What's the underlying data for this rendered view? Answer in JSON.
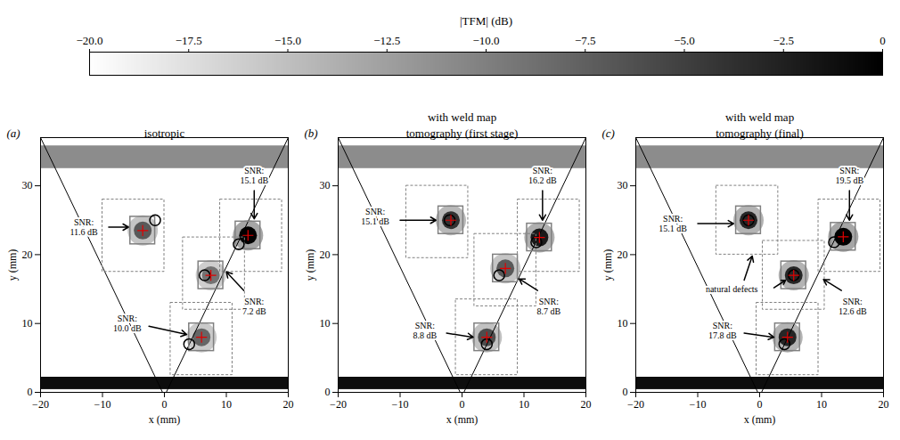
{
  "chart_data": [
    {
      "type": "colorbar",
      "title": "|TFM| (dB)",
      "xlim": [
        -20,
        0
      ],
      "xticks": [
        {
          "value": -20,
          "label": "−20.0"
        },
        {
          "value": -17.5,
          "label": "−17.5"
        },
        {
          "value": -15,
          "label": "−15.0"
        },
        {
          "value": -12.5,
          "label": "−12.5"
        },
        {
          "value": -10,
          "label": "−10.0"
        },
        {
          "value": -7.5,
          "label": "−7.5"
        },
        {
          "value": -5,
          "label": "−5.0"
        },
        {
          "value": -2.5,
          "label": "−2.5"
        },
        0
      ]
    },
    {
      "type": "heatmap",
      "label": "(a)",
      "title": "isotropic",
      "xlabel": "x (mm)",
      "ylabel": "y (mm)",
      "xlim": [
        -20,
        20
      ],
      "xticks": [
        -20,
        -10,
        0,
        10,
        20
      ],
      "ylim": [
        0,
        37
      ],
      "yticks": [
        0,
        10,
        20,
        30
      ],
      "bands": [
        {
          "y1": 0.4,
          "y2": 2.2,
          "db": -1
        },
        {
          "y1": 32.5,
          "y2": 35.8,
          "db": -11
        }
      ],
      "reflectors": [
        {
          "x": -3.5,
          "y": 23.5,
          "db": -7
        },
        {
          "x": 13.5,
          "y": 22.8,
          "db": 0
        },
        {
          "x": 7.5,
          "y": 17,
          "db": -9
        },
        {
          "x": 6,
          "y": 8,
          "db": -8
        }
      ],
      "weld_lines": [
        [
          [
            -20,
            37
          ],
          [
            -0.3,
            0
          ]
        ],
        [
          [
            0.3,
            0
          ],
          [
            20,
            37
          ]
        ]
      ],
      "true_positions": [
        [
          -1.5,
          25
        ],
        [
          12,
          21.5
        ],
        [
          6.5,
          17
        ],
        [
          4,
          7
        ]
      ],
      "peaks": [
        [
          -3.5,
          23.5
        ],
        [
          13.5,
          22.8
        ],
        [
          7.5,
          17
        ],
        [
          6,
          8
        ]
      ],
      "boxes": [
        [
          -5.5,
          -1.5,
          21.5,
          25.5
        ],
        [
          11.5,
          15.5,
          20.8,
          24.8
        ],
        [
          5.5,
          9.5,
          15,
          19
        ],
        [
          4,
          8,
          6,
          10
        ]
      ],
      "regions": [
        [
          -10,
          0,
          17.5,
          28
        ],
        [
          9,
          19,
          17.5,
          28
        ],
        [
          3,
          13,
          12,
          22.5
        ],
        [
          1,
          11,
          2.5,
          13
        ]
      ],
      "annotations": [
        {
          "text": "SNR:\n15.1 dB",
          "x": 14.5,
          "y": 31.5,
          "arrows": [
            [
              14.5,
              29.3,
              14.5,
              25.2
            ]
          ]
        },
        {
          "text": "SNR:\n11.6 dB",
          "x": -13,
          "y": 24,
          "arrows": [
            [
              -9,
              24,
              -5.8,
              24
            ]
          ]
        },
        {
          "text": "SNR:\n7.2 dB",
          "x": 14.5,
          "y": 12.5,
          "arrows": [
            [
              12.8,
              14.8,
              10,
              17.5
            ]
          ]
        },
        {
          "text": "SNR:\n10.0 dB",
          "x": -6,
          "y": 10,
          "arrows": [
            [
              -2.5,
              9.6,
              3.6,
              8.4
            ]
          ]
        }
      ]
    },
    {
      "type": "heatmap",
      "label": "(b)",
      "subtitle": "with weld map",
      "title": "tomography (first stage)",
      "xlabel": "x (mm)",
      "ylabel": "y (mm)",
      "xlim": [
        -20,
        20
      ],
      "xticks": [
        -20,
        -10,
        0,
        10,
        20
      ],
      "ylim": [
        0,
        37
      ],
      "yticks": [
        0,
        10,
        20,
        30
      ],
      "bands": [
        {
          "y1": 0.4,
          "y2": 2.2,
          "db": -1
        },
        {
          "y1": 32.5,
          "y2": 35.8,
          "db": -11
        }
      ],
      "reflectors": [
        {
          "x": -1.8,
          "y": 25,
          "db": -4
        },
        {
          "x": 12.5,
          "y": 22.5,
          "db": -2
        },
        {
          "x": 7,
          "y": 18,
          "db": -7
        },
        {
          "x": 4,
          "y": 8,
          "db": -6
        }
      ],
      "weld_lines": [
        [
          [
            -20,
            37
          ],
          [
            -0.3,
            0
          ]
        ],
        [
          [
            0.3,
            0
          ],
          [
            20,
            37
          ]
        ]
      ],
      "true_positions": [
        [
          -2,
          25
        ],
        [
          12,
          21.8
        ],
        [
          6,
          17
        ],
        [
          4,
          7
        ]
      ],
      "peaks": [
        [
          -1.8,
          25
        ],
        [
          12.5,
          22.5
        ],
        [
          7,
          18
        ],
        [
          4,
          8
        ]
      ],
      "boxes": [
        [
          -3.8,
          0.2,
          23,
          27
        ],
        [
          10.5,
          14.5,
          20.5,
          24.5
        ],
        [
          5,
          9,
          16,
          20
        ],
        [
          2,
          6,
          6,
          10
        ]
      ],
      "regions": [
        [
          -9,
          1,
          19.5,
          30
        ],
        [
          9,
          19,
          17.5,
          28
        ],
        [
          2,
          12,
          12.5,
          23
        ],
        [
          -1,
          9,
          2.5,
          13.5
        ]
      ],
      "annotations": [
        {
          "text": "SNR:\n15.1 dB",
          "x": -14,
          "y": 25.5,
          "arrows": [
            [
              -10,
              25,
              -4.2,
              25
            ]
          ]
        },
        {
          "text": "SNR:\n16.2 dB",
          "x": 13,
          "y": 31.5,
          "arrows": [
            [
              13,
              29.3,
              13,
              25
            ]
          ]
        },
        {
          "text": "SNR:\n8.7 dB",
          "x": 14,
          "y": 12.5,
          "arrows": [
            [
              12.2,
              14.8,
              9.2,
              16.5
            ]
          ]
        },
        {
          "text": "SNR:\n8.8 dB",
          "x": -6,
          "y": 9,
          "arrows": [
            [
              -2.5,
              8.6,
              1.8,
              8
            ]
          ]
        }
      ]
    },
    {
      "type": "heatmap",
      "label": "(c)",
      "subtitle": "with weld map",
      "title": "tomography (final)",
      "xlabel": "x (mm)",
      "ylabel": "y (mm)",
      "xlim": [
        -20,
        20
      ],
      "xticks": [
        -20,
        -10,
        0,
        10,
        20
      ],
      "ylim": [
        0,
        37
      ],
      "yticks": [
        0,
        10,
        20,
        30
      ],
      "bands": [
        {
          "y1": 0.4,
          "y2": 2.2,
          "db": -1
        },
        {
          "y1": 32.5,
          "y2": 35.8,
          "db": -11
        }
      ],
      "reflectors": [
        {
          "x": -1.8,
          "y": 25,
          "db": -3
        },
        {
          "x": 13.5,
          "y": 22.6,
          "db": 0
        },
        {
          "x": 5.5,
          "y": 17,
          "db": -3
        },
        {
          "x": 4.5,
          "y": 8,
          "db": -3
        }
      ],
      "weld_lines": [
        [
          [
            -20,
            37
          ],
          [
            -0.3,
            0
          ]
        ],
        [
          [
            0.3,
            0
          ],
          [
            20,
            37
          ]
        ]
      ],
      "true_positions": [
        [
          -1.8,
          25
        ],
        [
          12,
          21.8
        ],
        [
          5.5,
          17
        ],
        [
          4,
          7
        ]
      ],
      "peaks": [
        [
          -1.8,
          25
        ],
        [
          13.5,
          22.6
        ],
        [
          5.5,
          17
        ],
        [
          4.5,
          8
        ]
      ],
      "boxes": [
        [
          -3.8,
          0.2,
          23,
          27
        ],
        [
          11.5,
          15.5,
          20.6,
          24.6
        ],
        [
          3.5,
          7.5,
          15,
          19
        ],
        [
          2.5,
          6.5,
          6,
          10
        ]
      ],
      "regions": [
        [
          -7,
          3,
          20,
          30
        ],
        [
          9.5,
          19.5,
          17.5,
          28
        ],
        [
          0.5,
          10.5,
          12,
          22
        ],
        [
          -0.5,
          9.5,
          2.5,
          13
        ]
      ],
      "annotations": [
        {
          "text": "SNR:\n15.1 dB",
          "x": -14,
          "y": 24.5,
          "arrows": [
            [
              -10,
              24.5,
              -4.2,
              24.5
            ]
          ]
        },
        {
          "text": "SNR:\n19.5 dB",
          "x": 14.5,
          "y": 31.5,
          "arrows": [
            [
              14.5,
              29.3,
              14.5,
              25
            ]
          ]
        },
        {
          "text": "SNR:\n12.6 dB",
          "x": 15,
          "y": 12.5,
          "arrows": [
            [
              13.2,
              14.8,
              10.3,
              16.4
            ]
          ]
        },
        {
          "text": "SNR:\n17.8 dB",
          "x": -6,
          "y": 9,
          "arrows": [
            [
              -2.5,
              8.6,
              2.3,
              8
            ]
          ]
        },
        {
          "text": "natural defects",
          "x": -4.5,
          "y": 15,
          "arrows": [
            [
              -2.5,
              16.3,
              -1.2,
              19.8
            ],
            [
              2.3,
              15.2,
              4.2,
              16.3
            ]
          ]
        }
      ]
    }
  ]
}
